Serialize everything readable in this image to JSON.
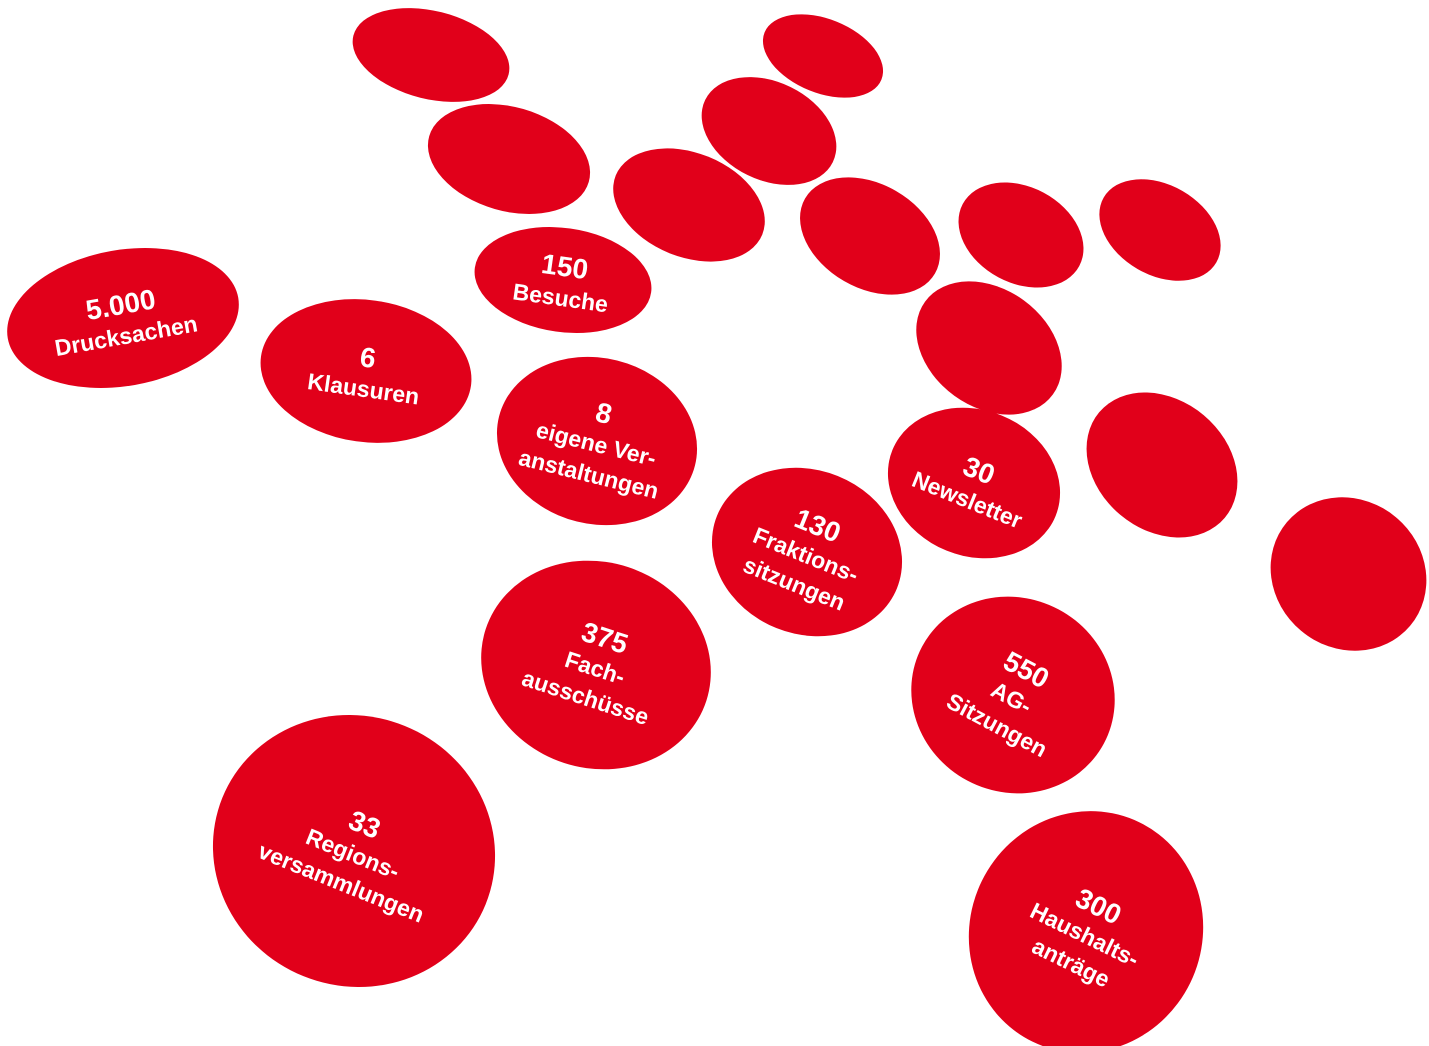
{
  "theme": {
    "dot_color": "#e1001a",
    "text_color": "#ffffff"
  },
  "stats": [
    {
      "id": "drucksachen",
      "number": "5.000",
      "lines": [
        "Drucksachen"
      ]
    },
    {
      "id": "besuche",
      "number": "150",
      "lines": [
        "Besuche"
      ]
    },
    {
      "id": "klausuren",
      "number": "6",
      "lines": [
        "Klausuren"
      ]
    },
    {
      "id": "veranstaltungen",
      "number": "8",
      "lines": [
        "eigene Ver-",
        "anstaltungen"
      ]
    },
    {
      "id": "newsletter",
      "number": "30",
      "lines": [
        "Newsletter"
      ]
    },
    {
      "id": "fraktionssitzungen",
      "number": "130",
      "lines": [
        "Fraktions-",
        "sitzungen"
      ]
    },
    {
      "id": "fachausschuesse",
      "number": "375",
      "lines": [
        "Fach-",
        "ausschüsse"
      ]
    },
    {
      "id": "ag-sitzungen",
      "number": "550",
      "lines": [
        "AG-",
        "Sitzungen"
      ]
    },
    {
      "id": "regionsversammlungen",
      "number": "33",
      "lines": [
        "Regions-",
        "versammlungen"
      ]
    },
    {
      "id": "haushaltsantraege",
      "number": "300",
      "lines": [
        "Haushalts-",
        "anträge"
      ]
    }
  ]
}
